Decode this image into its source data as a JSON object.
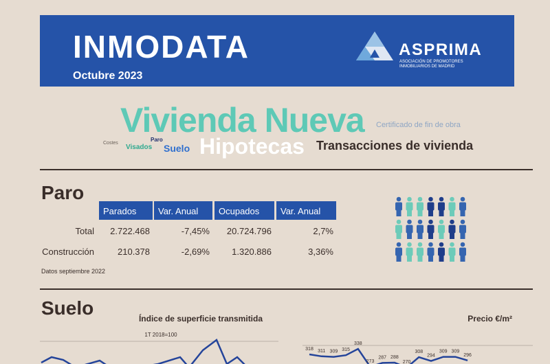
{
  "header": {
    "title": "INMODATA",
    "subtitle": "Octubre 2023",
    "logo_name": "ASPRIMA",
    "logo_tagline": [
      "ASOCIACIÓN DE PROMOTORES",
      "INMOBILIARIOS DE MADRID"
    ]
  },
  "word_cloud": [
    "Vivienda Nueva",
    "Certificado de fin de obra",
    "Costes",
    "Visados",
    "Paro",
    "Suelo",
    "Hipotecas",
    "Transacciones de vivienda"
  ],
  "paro": {
    "title": "Paro",
    "table": {
      "columns": [
        "Parados",
        "Var. Anual",
        "Ocupados",
        "Var. Anual"
      ],
      "rows": [
        [
          "Total",
          "2.722.468",
          "-7,45%",
          "20.724.796",
          "2,7%"
        ],
        [
          "Construcción",
          "210.378",
          "-2,69%",
          "1.320.886",
          "3,36%"
        ]
      ]
    },
    "note": "Datos septiembre 2022"
  },
  "suelo": {
    "title": "Suelo",
    "charts": [
      {
        "title": "Índice de superficie transmitida",
        "subtitle": "1T 2018=100"
      },
      {
        "type": "line",
        "title": "Precio €/m²",
        "color": "#24449a",
        "values": [
          318,
          311,
          309,
          315,
          338,
          273,
          287,
          288,
          270,
          308,
          294,
          309,
          309,
          296
        ]
      }
    ]
  }
}
